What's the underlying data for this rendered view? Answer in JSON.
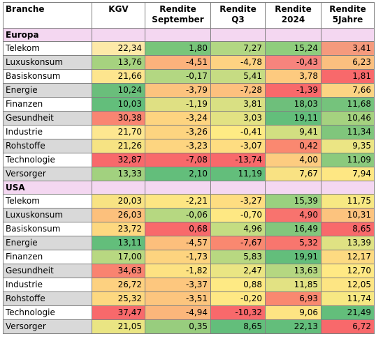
{
  "headers": {
    "branche": "Branche",
    "kgv": "KGV",
    "rendite_sep": [
      "Rendite",
      "September"
    ],
    "rendite_q3": [
      "Rendite",
      "Q3"
    ],
    "rendite_2024": [
      "Rendite",
      "2024"
    ],
    "rendite_5j": [
      "Rendite",
      "5Jahre"
    ]
  },
  "sections": [
    {
      "name": "Europa",
      "rows": [
        {
          "label": "Telekom",
          "alt": false,
          "values": [
            "22,34",
            "1,80",
            "7,27",
            "15,24",
            "3,41"
          ],
          "colors": [
            "#fde9a8",
            "#78c57a",
            "#b2d783",
            "#8fcd7d",
            "#f59a7d"
          ]
        },
        {
          "label": "Luxuskonsum",
          "alt": true,
          "values": [
            "13,76",
            "-4,51",
            "-4,78",
            "-0,43",
            "6,23"
          ],
          "colors": [
            "#a6d27f",
            "#fcb27c",
            "#fed282",
            "#f7847d",
            "#fbbf7f"
          ]
        },
        {
          "label": "Basiskonsum",
          "alt": false,
          "values": [
            "21,66",
            "-0,17",
            "5,41",
            "3,78",
            "1,81"
          ],
          "colors": [
            "#fde58e",
            "#b3d782",
            "#c6dc83",
            "#fdca7f",
            "#f8696b"
          ]
        },
        {
          "label": "Energie",
          "alt": true,
          "values": [
            "10,24",
            "-3,79",
            "-7,28",
            "-1,39",
            "7,66"
          ],
          "colors": [
            "#6abe7b",
            "#fcc37e",
            "#fdc07e",
            "#f8696b",
            "#fcd483"
          ]
        },
        {
          "label": "Finanzen",
          "alt": false,
          "values": [
            "10,03",
            "-1,19",
            "3,81",
            "18,03",
            "11,68"
          ],
          "colors": [
            "#63be7b",
            "#dfe083",
            "#d9e083",
            "#6ebf7b",
            "#75c37c"
          ]
        },
        {
          "label": "Gesundheit",
          "alt": true,
          "values": [
            "30,38",
            "-3,24",
            "3,03",
            "19,11",
            "10,46"
          ],
          "colors": [
            "#f98572",
            "#fdd480",
            "#e2e283",
            "#63be7b",
            "#a5d27f"
          ]
        },
        {
          "label": "Industrie",
          "alt": false,
          "values": [
            "21,70",
            "-3,26",
            "-0,41",
            "9,41",
            "11,34"
          ],
          "colors": [
            "#fde790",
            "#fdd480",
            "#feeb84",
            "#d2df81",
            "#80c67c"
          ]
        },
        {
          "label": "Rohstoffe",
          "alt": true,
          "values": [
            "21,26",
            "-3,23",
            "-3,07",
            "0,42",
            "9,35"
          ],
          "colors": [
            "#f6e383",
            "#fdd580",
            "#fedd81",
            "#fa8870",
            "#ebe584"
          ]
        },
        {
          "label": "Technologie",
          "alt": false,
          "values": [
            "32,87",
            "-7,08",
            "-13,74",
            "4,00",
            "11,09"
          ],
          "colors": [
            "#f8696b",
            "#f8696b",
            "#f8696b",
            "#fdcc80",
            "#8bca7d"
          ]
        },
        {
          "label": "Versorger",
          "alt": true,
          "values": [
            "13,33",
            "2,10",
            "11,19",
            "7,67",
            "7,94"
          ],
          "colors": [
            "#a2d17f",
            "#63be7b",
            "#63be7b",
            "#f9e283",
            "#fee783"
          ]
        }
      ]
    },
    {
      "name": "USA",
      "rows": [
        {
          "label": "Telekom",
          "alt": false,
          "values": [
            "20,03",
            "-2,21",
            "-3,27",
            "15,39",
            "11,75"
          ],
          "colors": [
            "#f8e383",
            "#fde683",
            "#fedd81",
            "#9ad07f",
            "#f7e883"
          ]
        },
        {
          "label": "Luxuskonsum",
          "alt": true,
          "values": [
            "26,03",
            "-0,06",
            "-0,70",
            "4,90",
            "10,31"
          ],
          "colors": [
            "#fcc07c",
            "#b6d881",
            "#fee883",
            "#f8736e",
            "#fcc37e"
          ]
        },
        {
          "label": "Basiskonsum",
          "alt": false,
          "values": [
            "23,72",
            "0,68",
            "4,96",
            "16,49",
            "8,65"
          ],
          "colors": [
            "#fdd880",
            "#f8696b",
            "#c4dd82",
            "#83c77c",
            "#f8696b"
          ]
        },
        {
          "label": "Energie",
          "alt": true,
          "values": [
            "13,11",
            "-4,57",
            "-7,67",
            "5,32",
            "13,39"
          ],
          "colors": [
            "#63be7b",
            "#fcbf7c",
            "#f98870",
            "#f8766e",
            "#dfe283"
          ]
        },
        {
          "label": "Finanzen",
          "alt": false,
          "values": [
            "17,00",
            "-1,73",
            "5,83",
            "19,91",
            "12,17"
          ],
          "colors": [
            "#b8d881",
            "#fdd47f",
            "#b8d881",
            "#63be7b",
            "#fdda81"
          ]
        },
        {
          "label": "Gesundheit",
          "alt": true,
          "values": [
            "34,63",
            "-1,82",
            "2,47",
            "13,63",
            "12,70"
          ],
          "colors": [
            "#f98370",
            "#fde282",
            "#eae583",
            "#b5d781",
            "#ffe984"
          ]
        },
        {
          "label": "Industrie",
          "alt": false,
          "values": [
            "26,72",
            "-3,37",
            "0,88",
            "11,85",
            "12,05"
          ],
          "colors": [
            "#fdd180",
            "#fdc77e",
            "#feea84",
            "#e2e283",
            "#fde583"
          ]
        },
        {
          "label": "Rohstoffe",
          "alt": true,
          "values": [
            "25,32",
            "-3,51",
            "-0,20",
            "6,93",
            "11,74"
          ],
          "colors": [
            "#fdd880",
            "#fcc57e",
            "#fee884",
            "#f98870",
            "#f7e883"
          ]
        },
        {
          "label": "Technologie",
          "alt": false,
          "values": [
            "37,47",
            "-4,94",
            "-10,32",
            "9,06",
            "21,49"
          ],
          "colors": [
            "#f8696b",
            "#fbb67b",
            "#f8696b",
            "#fde483",
            "#63be7b"
          ]
        },
        {
          "label": "Versorger",
          "alt": true,
          "values": [
            "21,05",
            "0,35",
            "8,65",
            "22,13",
            "6,72"
          ],
          "colors": [
            "#eae583",
            "#98cd7e",
            "#63be7b",
            "#63be7b",
            "#f8696b"
          ]
        }
      ]
    }
  ]
}
